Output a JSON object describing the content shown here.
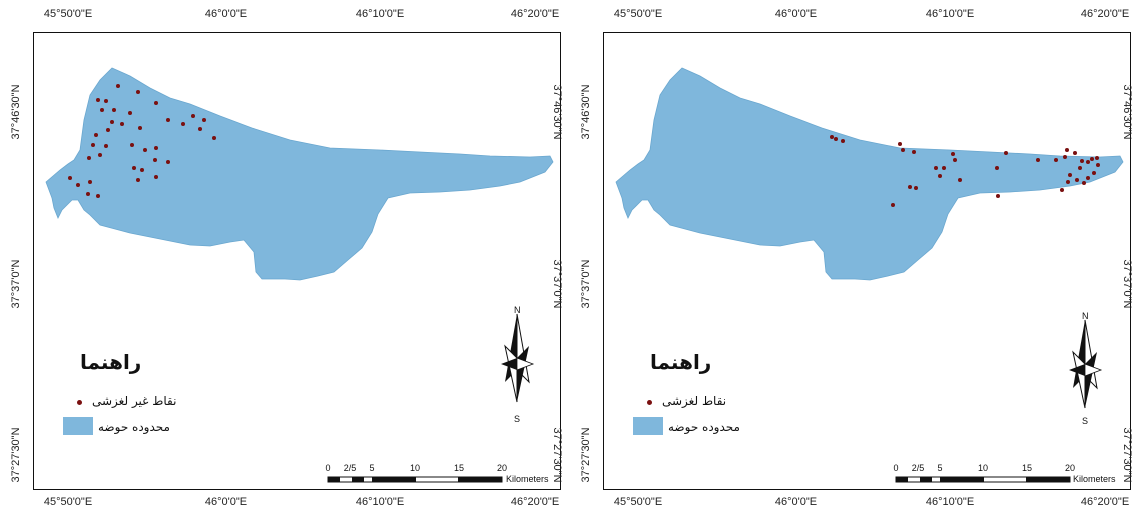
{
  "maps": [
    {
      "legend": {
        "title": "راهنما",
        "points_label": "نقاط غير لغزشی",
        "basin_label": "محدوده حوضه"
      },
      "points_kind": "non-landslide"
    },
    {
      "legend": {
        "title": "راهنما",
        "points_label": "نقاط لغزشی",
        "basin_label": "محدوده حوضه"
      },
      "points_kind": "landslide"
    }
  ],
  "lon_labels": [
    "45°50'0\"E",
    "46°0'0\"E",
    "46°10'0\"E",
    "46°20'0\"E"
  ],
  "lat_labels": [
    "37°46'30\"N",
    "37°37'0\"N",
    "37°27'30\"N"
  ],
  "scale_bar": {
    "ticks": [
      "0",
      "2/5",
      "5",
      "10",
      "15",
      "20"
    ],
    "unit": "Kilometers"
  },
  "north_arrow": {
    "n": "N",
    "s": "S"
  },
  "colors": {
    "basin": "#7fb7dc",
    "point": "#7a1010"
  }
}
